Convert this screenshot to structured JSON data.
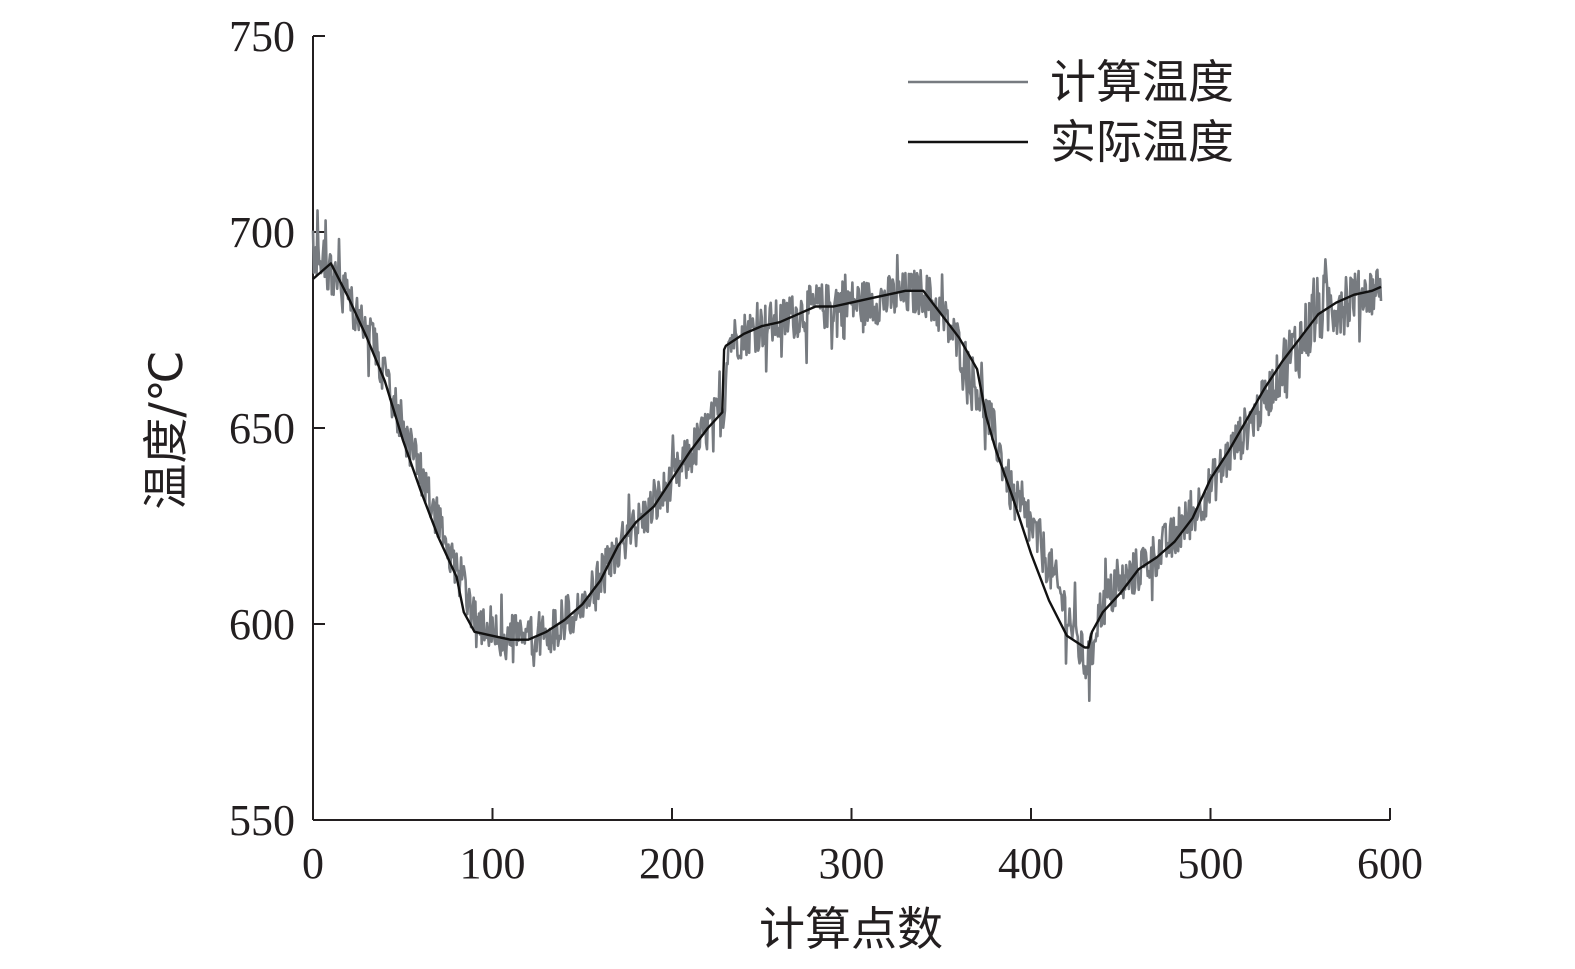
{
  "chart_data": {
    "type": "line",
    "xlabel": "计算点数",
    "ylabel": "温度/℃",
    "xlim": [
      0,
      600
    ],
    "ylim": [
      550,
      750
    ],
    "xticks": [
      0,
      100,
      200,
      300,
      400,
      500,
      600
    ],
    "yticks": [
      550,
      600,
      650,
      700,
      750
    ],
    "grid": false,
    "legend_position": "top-right",
    "series": [
      {
        "name": "计算温度",
        "color": "#777b80",
        "noisy": true,
        "x": [
          0,
          5,
          10,
          20,
          30,
          40,
          50,
          60,
          70,
          80,
          90,
          100,
          110,
          120,
          130,
          140,
          150,
          160,
          170,
          180,
          190,
          200,
          210,
          220,
          229,
          231,
          240,
          250,
          260,
          270,
          280,
          290,
          300,
          310,
          320,
          330,
          340,
          350,
          360,
          370,
          380,
          390,
          400,
          410,
          420,
          430,
          434,
          436,
          440,
          450,
          460,
          470,
          480,
          490,
          500,
          510,
          520,
          530,
          540,
          550,
          560,
          570,
          580,
          590,
          595
        ],
        "y": [
          695,
          693,
          689,
          683,
          675,
          664,
          650,
          638,
          626,
          615,
          600,
          599,
          596,
          597,
          598,
          601,
          604,
          611,
          619,
          625,
          630,
          636,
          643,
          650,
          655,
          672,
          674,
          676,
          677,
          679,
          681,
          681,
          682,
          682,
          683,
          684,
          685,
          679,
          671,
          660,
          648,
          632,
          625,
          615,
          603,
          590,
          592,
          600,
          605,
          610,
          614,
          618,
          622,
          628,
          635,
          643,
          650,
          657,
          665,
          672,
          680,
          682,
          684,
          685,
          687
        ]
      },
      {
        "name": "实际温度",
        "color": "#111111",
        "noisy": false,
        "x": [
          0,
          10,
          20,
          30,
          40,
          50,
          60,
          70,
          80,
          84,
          90,
          100,
          110,
          120,
          130,
          140,
          150,
          160,
          170,
          180,
          190,
          200,
          210,
          220,
          228,
          229,
          230,
          240,
          250,
          260,
          270,
          280,
          290,
          300,
          310,
          320,
          330,
          340,
          345,
          350,
          360,
          370,
          375,
          380,
          390,
          400,
          410,
          420,
          430,
          432,
          433,
          434,
          440,
          450,
          460,
          470,
          480,
          490,
          500,
          510,
          520,
          530,
          540,
          550,
          560,
          570,
          580,
          590,
          595
        ],
        "y": [
          688,
          692,
          683,
          673,
          662,
          647,
          634,
          622,
          612,
          603,
          598,
          597,
          596,
          596,
          598,
          601,
          605,
          611,
          620,
          626,
          630,
          637,
          644,
          650,
          654,
          670,
          671,
          674,
          676,
          677,
          679,
          681,
          681,
          682,
          683,
          684,
          685,
          685,
          682,
          679,
          673,
          665,
          653,
          645,
          632,
          618,
          606,
          597,
          594,
          594,
          596,
          598,
          603,
          608,
          614,
          617,
          621,
          627,
          637,
          644,
          652,
          660,
          667,
          673,
          679,
          682,
          684,
          685,
          686
        ]
      }
    ]
  }
}
